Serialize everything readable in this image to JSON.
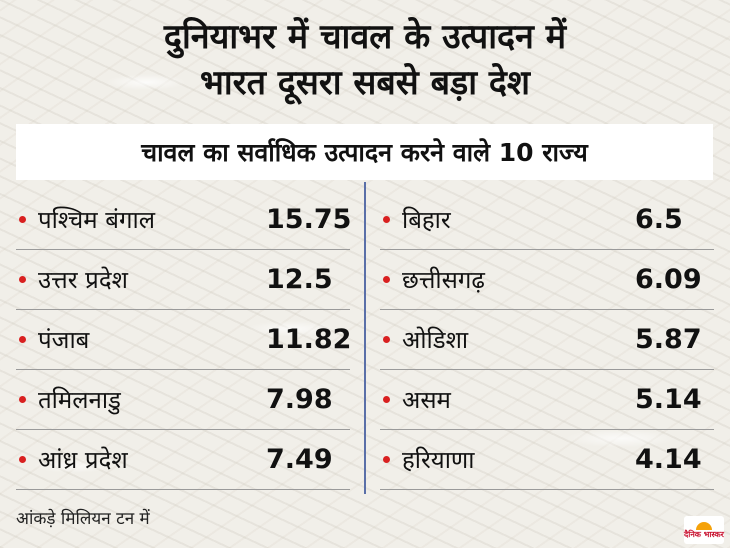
{
  "headline": {
    "line1": "दुनियाभर में चावल के उत्पादन में",
    "line2": "भारत दूसरा सबसे बड़ा देश"
  },
  "subtitle": "चावल का सर्वाधिक उत्पादन करने वाले 10 राज्य",
  "left_states": [
    {
      "name": "पश्चिम बंगाल",
      "value": "15.75"
    },
    {
      "name": "उत्तर प्रदेश",
      "value": "12.5"
    },
    {
      "name": "पंजाब",
      "value": "11.82"
    },
    {
      "name": "तमिलनाडु",
      "value": "7.98"
    },
    {
      "name": "आंध्र प्रदेश",
      "value": "7.49"
    }
  ],
  "right_states": [
    {
      "name": "बिहार",
      "value": "6.5"
    },
    {
      "name": "छत्तीसगढ़",
      "value": "6.09"
    },
    {
      "name": "ओडिशा",
      "value": "5.87"
    },
    {
      "name": "असम",
      "value": "5.14"
    },
    {
      "name": "हरियाणा",
      "value": "4.14"
    }
  ],
  "note": "आंकड़े मिलियन टन में",
  "logo": {
    "text": "दैनिक भास्कर"
  },
  "colors": {
    "bullet": "#d92020",
    "divider": "#5a6fa8",
    "logo_accent": "#f5a20a"
  }
}
